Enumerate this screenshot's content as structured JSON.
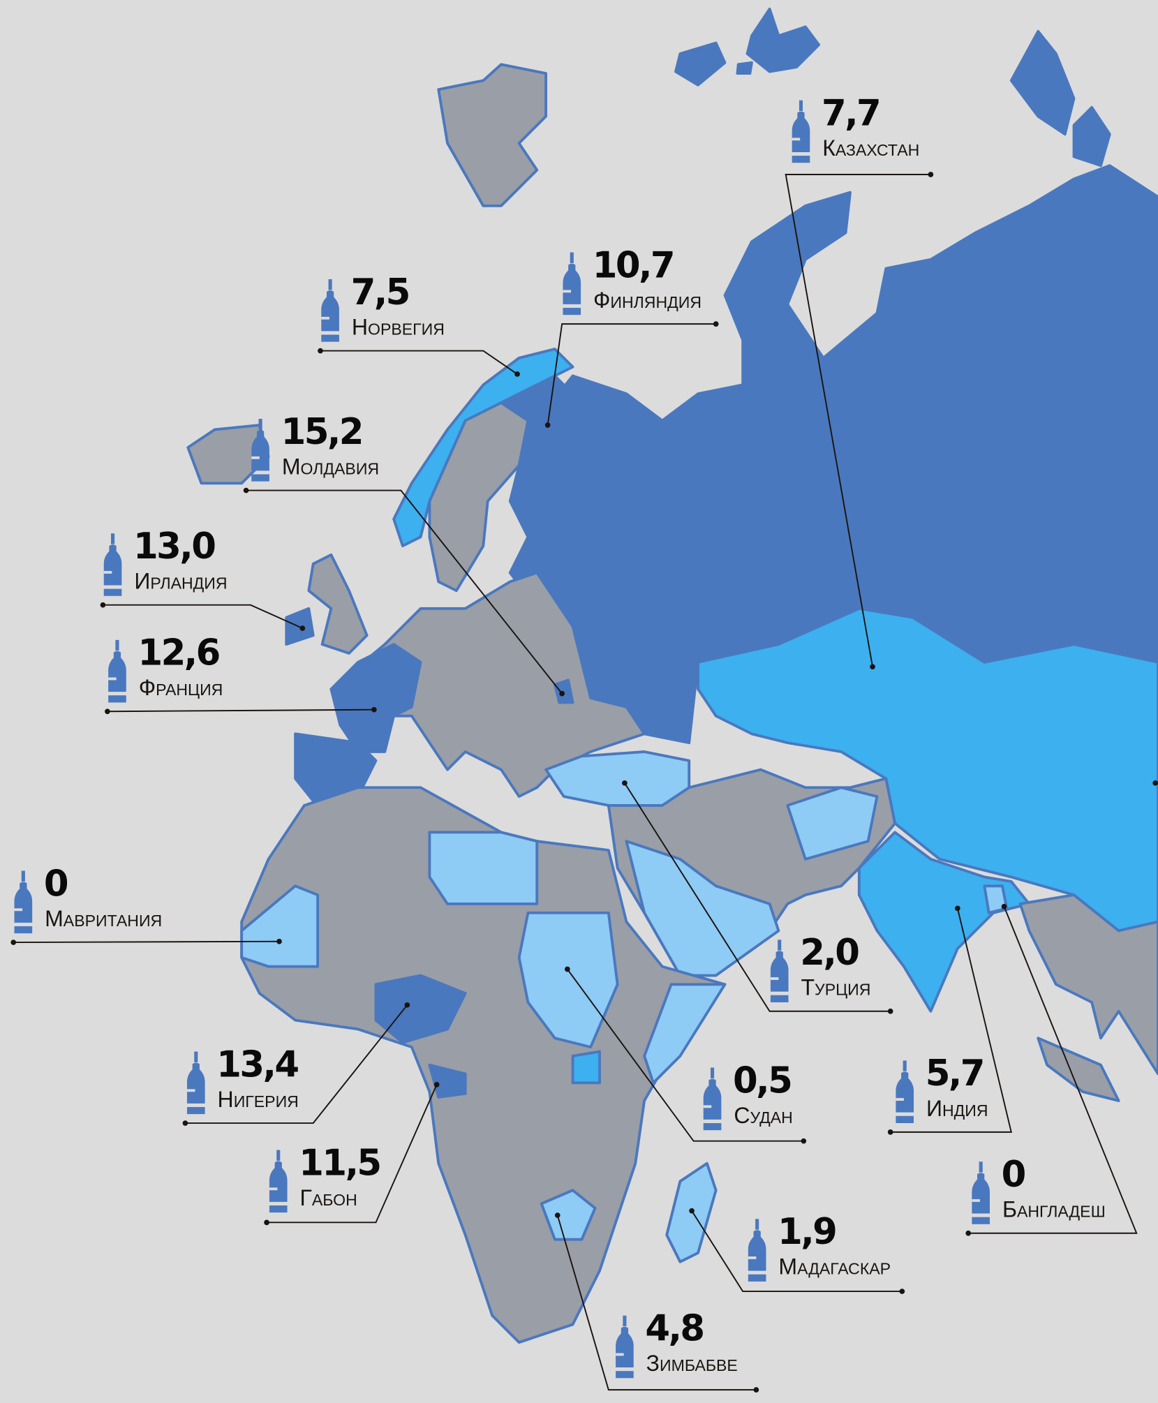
{
  "colors": {
    "background": "#dcdcdc",
    "dark_blue": "#4a78be",
    "light_blue": "#3db0ef",
    "pale_blue": "#8ecbf5",
    "gray": "#9a9ea6"
  },
  "icon": "bottle-icon",
  "labels": [
    {
      "value": "7,7",
      "country": "Казахстан"
    },
    {
      "value": "10,7",
      "country": "Финляндия"
    },
    {
      "value": "7,5",
      "country": "Норвегия"
    },
    {
      "value": "15,2",
      "country": "Молдавия"
    },
    {
      "value": "13,0",
      "country": "Ирландия"
    },
    {
      "value": "12,6",
      "country": "Франция"
    },
    {
      "value": "0",
      "country": "Мавритания"
    },
    {
      "value": "2,0",
      "country": "Турция"
    },
    {
      "value": "13,4",
      "country": "Нигерия"
    },
    {
      "value": "0,5",
      "country": "Судан"
    },
    {
      "value": "5,7",
      "country": "Индия"
    },
    {
      "value": "11,5",
      "country": "Габон"
    },
    {
      "value": "0",
      "country": "Бангладеш"
    },
    {
      "value": "1,9",
      "country": "Мадагаскар"
    },
    {
      "value": "4,8",
      "country": "Зимбабве"
    }
  ]
}
